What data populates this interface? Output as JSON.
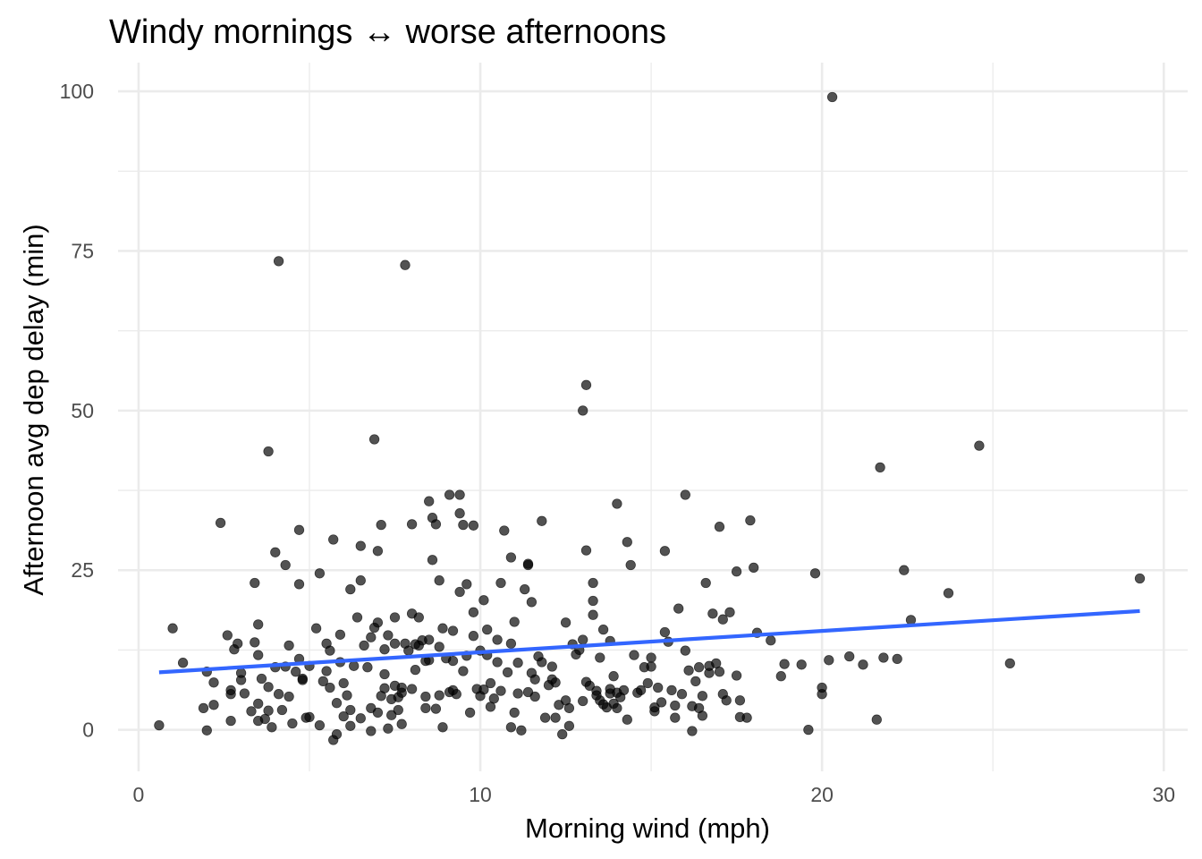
{
  "chart_data": {
    "type": "scatter",
    "title": "Windy mornings ↔ worse afternoons",
    "xlabel": "Morning wind (mph)",
    "ylabel": "Afternoon avg dep delay (min)",
    "xlim": [
      -0.6,
      30.7
    ],
    "ylim": [
      -6.5,
      104.5
    ],
    "x_ticks": [
      0,
      10,
      20,
      30
    ],
    "x_tick_labels": [
      "0",
      "10",
      "20",
      "30"
    ],
    "y_ticks": [
      0,
      25,
      50,
      75,
      100
    ],
    "y_tick_labels": [
      "0",
      "25",
      "50",
      "75",
      "100"
    ],
    "grid": true,
    "legend": "none",
    "point_color": "#000000",
    "trend_color": "#3366ff",
    "trend": {
      "method": "linear",
      "x": [
        0.6,
        29.3
      ],
      "y": [
        9.0,
        18.6
      ]
    },
    "points": [
      [
        0.6,
        0.7
      ],
      [
        1.0,
        15.9
      ],
      [
        1.3,
        10.5
      ],
      [
        1.9,
        3.4
      ],
      [
        2.0,
        -0.1
      ],
      [
        2.0,
        9.1
      ],
      [
        2.2,
        7.4
      ],
      [
        2.2,
        3.9
      ],
      [
        2.4,
        32.4
      ],
      [
        2.6,
        14.8
      ],
      [
        2.7,
        6.2
      ],
      [
        2.7,
        5.6
      ],
      [
        2.7,
        1.4
      ],
      [
        2.8,
        12.6
      ],
      [
        2.9,
        13.5
      ],
      [
        3.0,
        8.9
      ],
      [
        3.0,
        7.8
      ],
      [
        3.1,
        5.7
      ],
      [
        3.3,
        2.9
      ],
      [
        3.4,
        13.7
      ],
      [
        3.4,
        23.0
      ],
      [
        3.5,
        16.5
      ],
      [
        3.5,
        11.7
      ],
      [
        3.5,
        4.1
      ],
      [
        3.5,
        1.4
      ],
      [
        3.6,
        8.0
      ],
      [
        3.7,
        1.7
      ],
      [
        3.8,
        43.6
      ],
      [
        3.8,
        6.7
      ],
      [
        3.8,
        3.0
      ],
      [
        3.9,
        0.4
      ],
      [
        4.0,
        27.8
      ],
      [
        4.0,
        9.8
      ],
      [
        4.1,
        5.6
      ],
      [
        4.1,
        73.4
      ],
      [
        4.2,
        3.1
      ],
      [
        4.3,
        25.8
      ],
      [
        4.3,
        9.9
      ],
      [
        4.4,
        5.2
      ],
      [
        4.4,
        13.2
      ],
      [
        4.5,
        1.0
      ],
      [
        4.6,
        9.1
      ],
      [
        4.7,
        31.3
      ],
      [
        4.7,
        22.8
      ],
      [
        4.7,
        11.1
      ],
      [
        4.8,
        8.0
      ],
      [
        4.8,
        7.8
      ],
      [
        4.9,
        1.9
      ],
      [
        5.0,
        10.0
      ],
      [
        5.0,
        2.0
      ],
      [
        5.2,
        15.9
      ],
      [
        5.3,
        24.5
      ],
      [
        5.3,
        0.7
      ],
      [
        5.4,
        7.6
      ],
      [
        5.5,
        13.5
      ],
      [
        5.5,
        9.2
      ],
      [
        5.6,
        12.4
      ],
      [
        5.6,
        6.6
      ],
      [
        5.7,
        29.8
      ],
      [
        5.7,
        -1.6
      ],
      [
        5.8,
        -0.7
      ],
      [
        5.8,
        4.2
      ],
      [
        5.9,
        10.6
      ],
      [
        5.9,
        14.9
      ],
      [
        6.0,
        7.3
      ],
      [
        6.0,
        2.1
      ],
      [
        6.1,
        5.4
      ],
      [
        6.2,
        22.0
      ],
      [
        6.2,
        3.1
      ],
      [
        6.2,
        0.6
      ],
      [
        6.3,
        10.0
      ],
      [
        6.4,
        17.6
      ],
      [
        6.5,
        23.4
      ],
      [
        6.5,
        1.8
      ],
      [
        6.5,
        28.8
      ],
      [
        6.6,
        13.2
      ],
      [
        6.7,
        9.8
      ],
      [
        6.8,
        3.4
      ],
      [
        6.8,
        -0.2
      ],
      [
        6.8,
        14.5
      ],
      [
        6.9,
        16.0
      ],
      [
        6.9,
        45.5
      ],
      [
        7.0,
        2.7
      ],
      [
        7.0,
        28.0
      ],
      [
        7.0,
        16.8
      ],
      [
        7.1,
        5.3
      ],
      [
        7.1,
        32.1
      ],
      [
        7.2,
        6.5
      ],
      [
        7.2,
        12.6
      ],
      [
        7.2,
        8.7
      ],
      [
        7.3,
        14.8
      ],
      [
        7.3,
        0.2
      ],
      [
        7.4,
        4.8
      ],
      [
        7.4,
        2.3
      ],
      [
        7.5,
        17.6
      ],
      [
        7.5,
        6.9
      ],
      [
        7.5,
        13.5
      ],
      [
        7.6,
        3.1
      ],
      [
        7.6,
        5.1
      ],
      [
        7.7,
        5.8
      ],
      [
        7.7,
        6.6
      ],
      [
        7.7,
        0.9
      ],
      [
        7.8,
        72.8
      ],
      [
        7.8,
        13.5
      ],
      [
        7.9,
        12.4
      ],
      [
        8.0,
        6.4
      ],
      [
        8.0,
        32.2
      ],
      [
        8.0,
        18.2
      ],
      [
        8.1,
        13.4
      ],
      [
        8.1,
        9.4
      ],
      [
        8.2,
        17.6
      ],
      [
        8.2,
        13.2
      ],
      [
        8.3,
        14.0
      ],
      [
        8.4,
        3.4
      ],
      [
        8.4,
        10.8
      ],
      [
        8.4,
        5.2
      ],
      [
        8.5,
        35.8
      ],
      [
        8.5,
        10.9
      ],
      [
        8.5,
        14.1
      ],
      [
        8.6,
        26.6
      ],
      [
        8.6,
        33.2
      ],
      [
        8.7,
        3.3
      ],
      [
        8.7,
        32.2
      ],
      [
        8.8,
        5.4
      ],
      [
        8.8,
        23.4
      ],
      [
        8.8,
        13.0
      ],
      [
        8.9,
        15.9
      ],
      [
        8.9,
        0.4
      ],
      [
        9.0,
        11.2
      ],
      [
        9.1,
        36.8
      ],
      [
        9.1,
        5.9
      ],
      [
        9.2,
        15.5
      ],
      [
        9.2,
        6.2
      ],
      [
        9.2,
        10.8
      ],
      [
        9.3,
        5.6
      ],
      [
        9.4,
        21.6
      ],
      [
        9.4,
        36.8
      ],
      [
        9.4,
        33.9
      ],
      [
        9.5,
        9.2
      ],
      [
        9.5,
        32.1
      ],
      [
        9.6,
        22.8
      ],
      [
        9.6,
        11.6
      ],
      [
        9.7,
        2.7
      ],
      [
        9.8,
        14.7
      ],
      [
        9.8,
        32.0
      ],
      [
        9.8,
        18.4
      ],
      [
        9.9,
        6.4
      ],
      [
        10.0,
        5.3
      ],
      [
        10.0,
        12.4
      ],
      [
        10.1,
        20.3
      ],
      [
        10.1,
        6.3
      ],
      [
        10.2,
        15.7
      ],
      [
        10.2,
        11.7
      ],
      [
        10.3,
        7.3
      ],
      [
        10.3,
        3.6
      ],
      [
        10.4,
        4.9
      ],
      [
        10.5,
        14.1
      ],
      [
        10.5,
        10.6
      ],
      [
        10.6,
        6.1
      ],
      [
        10.6,
        23.0
      ],
      [
        10.7,
        31.2
      ],
      [
        10.8,
        9.0
      ],
      [
        10.9,
        0.4
      ],
      [
        10.9,
        13.5
      ],
      [
        10.9,
        27.0
      ],
      [
        11.0,
        16.9
      ],
      [
        11.0,
        2.7
      ],
      [
        11.1,
        5.7
      ],
      [
        11.1,
        10.5
      ],
      [
        11.2,
        -0.1
      ],
      [
        11.3,
        22.0
      ],
      [
        11.4,
        5.9
      ],
      [
        11.4,
        25.8
      ],
      [
        11.4,
        26.0
      ],
      [
        11.5,
        8.9
      ],
      [
        11.5,
        20.0
      ],
      [
        11.6,
        7.9
      ],
      [
        11.6,
        5.2
      ],
      [
        11.7,
        11.5
      ],
      [
        11.8,
        10.6
      ],
      [
        11.8,
        32.7
      ],
      [
        11.9,
        1.9
      ],
      [
        12.0,
        7.0
      ],
      [
        12.1,
        9.9
      ],
      [
        12.1,
        7.9
      ],
      [
        12.2,
        1.9
      ],
      [
        12.2,
        7.4
      ],
      [
        12.3,
        3.9
      ],
      [
        12.4,
        -0.7
      ],
      [
        12.5,
        4.6
      ],
      [
        12.5,
        16.8
      ],
      [
        12.6,
        0.6
      ],
      [
        12.6,
        3.4
      ],
      [
        12.7,
        13.4
      ],
      [
        12.8,
        11.8
      ],
      [
        12.9,
        12.5
      ],
      [
        13.0,
        14.1
      ],
      [
        13.0,
        4.5
      ],
      [
        13.0,
        50.0
      ],
      [
        13.1,
        7.5
      ],
      [
        13.1,
        54.0
      ],
      [
        13.1,
        28.1
      ],
      [
        13.2,
        6.9
      ],
      [
        13.3,
        23.0
      ],
      [
        13.3,
        20.2
      ],
      [
        13.3,
        18.0
      ],
      [
        13.4,
        6.1
      ],
      [
        13.4,
        5.4
      ],
      [
        13.5,
        11.3
      ],
      [
        13.5,
        4.6
      ],
      [
        13.6,
        4.0
      ],
      [
        13.6,
        15.7
      ],
      [
        13.7,
        3.5
      ],
      [
        13.8,
        6.4
      ],
      [
        13.8,
        5.7
      ],
      [
        13.8,
        13.9
      ],
      [
        13.9,
        8.4
      ],
      [
        13.9,
        4.1
      ],
      [
        14.0,
        5.8
      ],
      [
        14.0,
        35.4
      ],
      [
        14.0,
        3.4
      ],
      [
        14.1,
        5.1
      ],
      [
        14.2,
        6.2
      ],
      [
        14.3,
        1.6
      ],
      [
        14.3,
        29.4
      ],
      [
        14.4,
        25.8
      ],
      [
        14.5,
        11.7
      ],
      [
        14.6,
        5.8
      ],
      [
        14.7,
        6.2
      ],
      [
        14.8,
        9.8
      ],
      [
        14.9,
        7.3
      ],
      [
        15.0,
        11.3
      ],
      [
        15.0,
        9.9
      ],
      [
        15.1,
        3.5
      ],
      [
        15.1,
        2.9
      ],
      [
        15.2,
        6.6
      ],
      [
        15.3,
        4.3
      ],
      [
        15.4,
        15.3
      ],
      [
        15.4,
        28.0
      ],
      [
        15.5,
        13.8
      ],
      [
        15.6,
        6.2
      ],
      [
        15.7,
        1.9
      ],
      [
        15.7,
        3.8
      ],
      [
        15.8,
        19.0
      ],
      [
        15.9,
        5.6
      ],
      [
        16.0,
        12.4
      ],
      [
        16.0,
        36.8
      ],
      [
        16.1,
        9.3
      ],
      [
        16.2,
        3.7
      ],
      [
        16.2,
        -0.2
      ],
      [
        16.3,
        7.6
      ],
      [
        16.4,
        9.8
      ],
      [
        16.4,
        3.4
      ],
      [
        16.5,
        5.3
      ],
      [
        16.5,
        2.2
      ],
      [
        16.6,
        23.0
      ],
      [
        16.7,
        8.9
      ],
      [
        16.7,
        10.0
      ],
      [
        16.8,
        18.2
      ],
      [
        16.9,
        10.4
      ],
      [
        17.0,
        9.1
      ],
      [
        17.0,
        31.8
      ],
      [
        17.1,
        17.3
      ],
      [
        17.1,
        5.6
      ],
      [
        17.2,
        4.6
      ],
      [
        17.3,
        18.4
      ],
      [
        17.5,
        24.8
      ],
      [
        17.5,
        8.5
      ],
      [
        17.6,
        4.6
      ],
      [
        17.6,
        2.0
      ],
      [
        17.8,
        1.9
      ],
      [
        17.9,
        32.8
      ],
      [
        18.0,
        25.4
      ],
      [
        18.1,
        15.2
      ],
      [
        18.5,
        14.0
      ],
      [
        18.8,
        8.4
      ],
      [
        18.9,
        10.3
      ],
      [
        19.4,
        10.2
      ],
      [
        19.6,
        0.0
      ],
      [
        19.8,
        24.5
      ],
      [
        20.0,
        6.6
      ],
      [
        20.0,
        5.6
      ],
      [
        20.2,
        10.9
      ],
      [
        20.3,
        99.1
      ],
      [
        20.8,
        11.5
      ],
      [
        21.2,
        10.2
      ],
      [
        21.6,
        1.6
      ],
      [
        21.7,
        41.1
      ],
      [
        21.8,
        11.3
      ],
      [
        22.2,
        11.1
      ],
      [
        22.4,
        25.0
      ],
      [
        22.6,
        17.2
      ],
      [
        23.7,
        21.4
      ],
      [
        24.6,
        44.5
      ],
      [
        25.5,
        10.4
      ],
      [
        29.3,
        23.7
      ]
    ]
  }
}
